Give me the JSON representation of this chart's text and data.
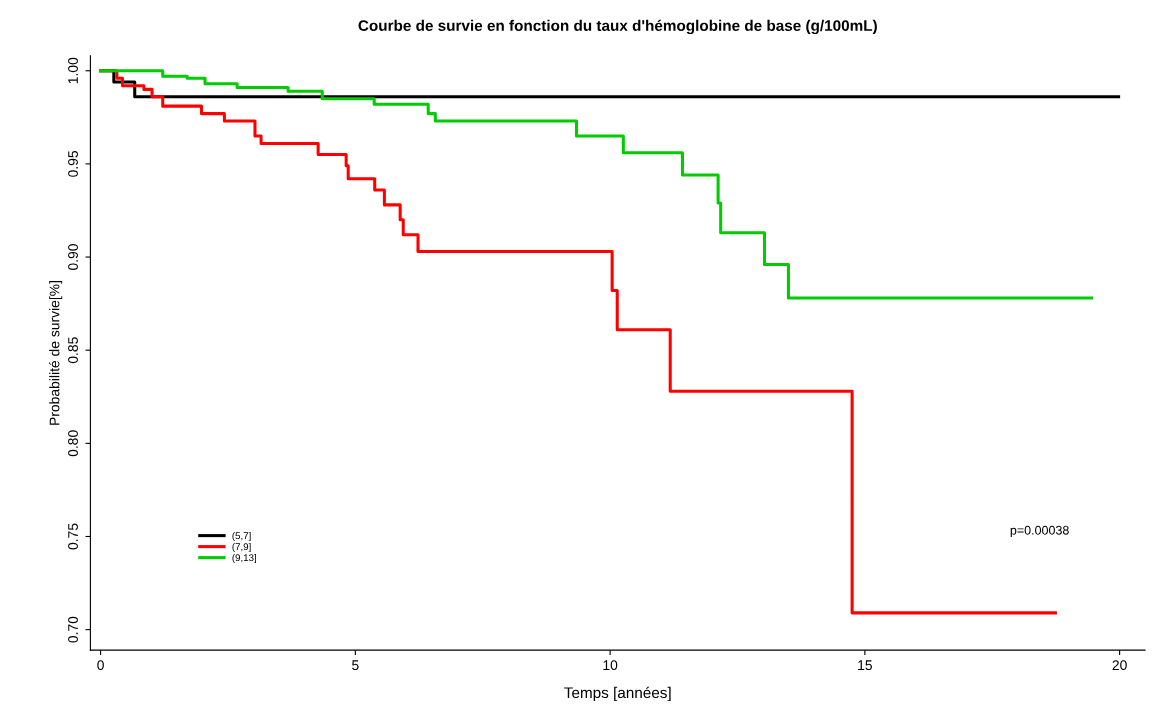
{
  "chart_data": {
    "type": "step",
    "title": "Courbe de survie en fonction du taux d'hémoglobine de base (g/100mL)",
    "xlabel": "Temps [années]",
    "ylabel": "Probabilité de survie[%]",
    "series": [
      {
        "name": "(5,7]",
        "color": "#000000",
        "x": [
          0,
          0.26,
          0.67,
          19.98
        ],
        "values": [
          1.0,
          0.994,
          0.986,
          0.986
        ]
      },
      {
        "name": "(7,9]",
        "color": "#ff0000",
        "x": [
          0,
          0.32,
          0.43,
          0.85,
          1.01,
          1.22,
          1.98,
          2.43,
          3.03,
          3.15,
          4.27,
          4.82,
          4.86,
          5.38,
          5.57,
          5.88,
          5.94,
          6.23,
          10.04,
          10.14,
          11.18,
          14.75,
          18.74
        ],
        "values": [
          1.0,
          0.996,
          0.992,
          0.99,
          0.986,
          0.981,
          0.977,
          0.973,
          0.965,
          0.961,
          0.955,
          0.949,
          0.942,
          0.936,
          0.928,
          0.92,
          0.912,
          0.903,
          0.882,
          0.861,
          0.828,
          0.709,
          0.709
        ]
      },
      {
        "name": "(9,13]",
        "color": "#00cc00",
        "x": [
          0,
          1.22,
          1.7,
          2.05,
          2.68,
          3.68,
          4.35,
          5.37,
          6.43,
          6.57,
          9.34,
          10.26,
          11.42,
          12.12,
          12.17,
          13.03,
          13.5,
          19.45
        ],
        "values": [
          1.0,
          0.997,
          0.996,
          0.993,
          0.991,
          0.989,
          0.985,
          0.982,
          0.977,
          0.973,
          0.965,
          0.956,
          0.944,
          0.929,
          0.913,
          0.896,
          0.878,
          0.878
        ]
      }
    ],
    "xlim": [
      -0.2,
      20.5
    ],
    "ylim": [
      0.689,
      1.008
    ],
    "xticks": [
      0,
      5,
      10,
      15,
      20
    ],
    "yticks": [
      {
        "value": 0.7,
        "label": "0.70"
      },
      {
        "value": 0.75,
        "label": "0.75"
      },
      {
        "value": 0.8,
        "label": "0.80"
      },
      {
        "value": 0.85,
        "label": "0.85"
      },
      {
        "value": 0.9,
        "label": "0.90"
      },
      {
        "value": 0.95,
        "label": "0.95"
      },
      {
        "value": 1.0,
        "label": "1.00"
      }
    ],
    "annotations": [
      "p=0.00038"
    ],
    "legend": "bottom left",
    "grid": false
  }
}
